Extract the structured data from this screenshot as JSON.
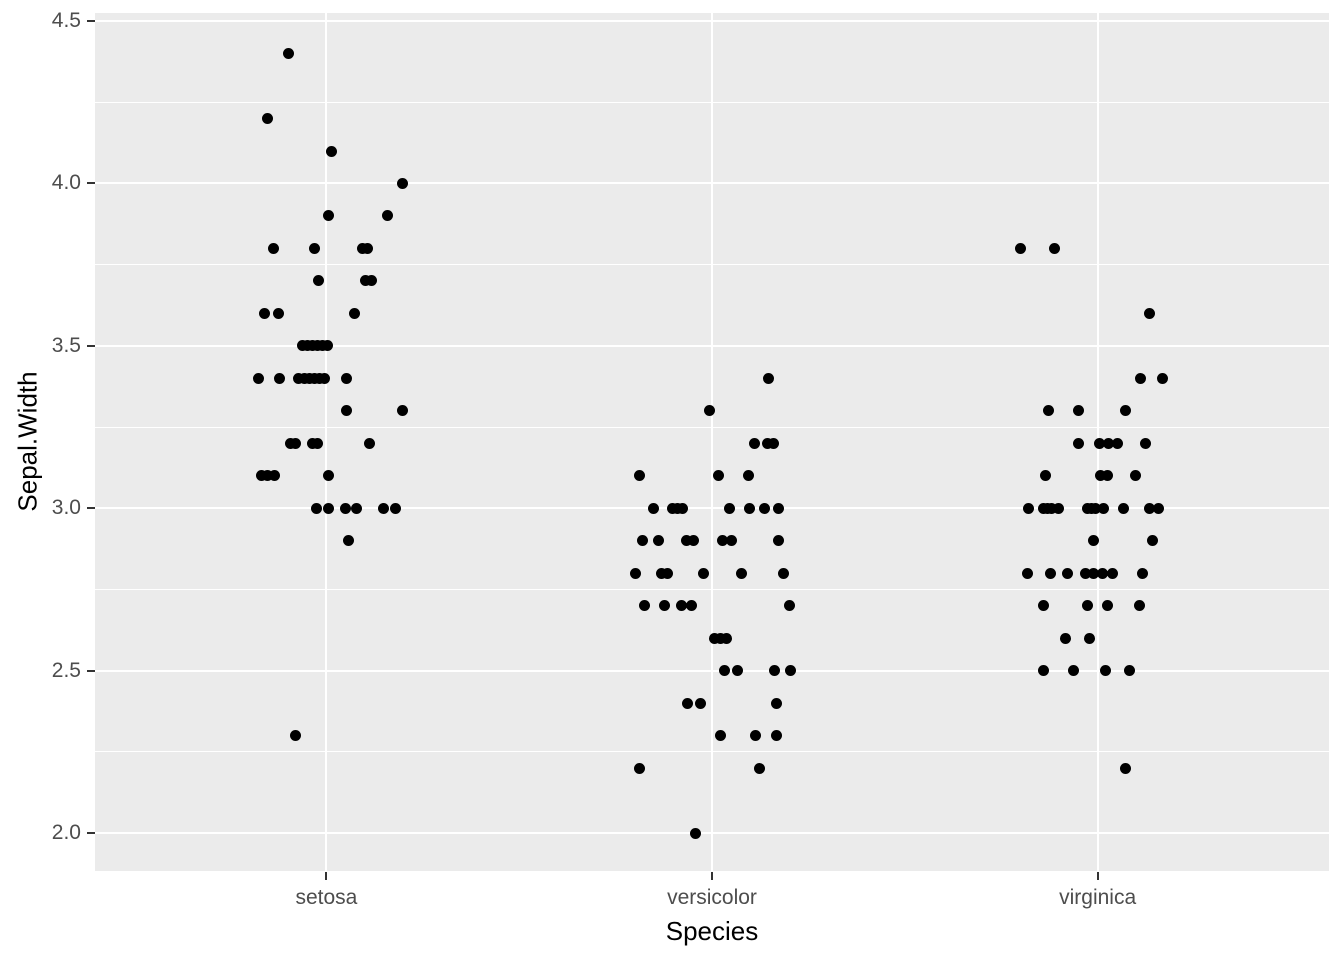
{
  "axes": {
    "x_title": "Species",
    "y_title": "Sepal.Width",
    "x_tick_labels": [
      "setosa",
      "versicolor",
      "virginica"
    ],
    "y_tick_labels": [
      "2.0",
      "2.5",
      "3.0",
      "3.5",
      "4.0",
      "4.5"
    ]
  },
  "colors": {
    "panel_background": "#EBEBEB",
    "gridline": "#FFFFFF",
    "point": "#000000",
    "tick_label": "#4D4D4D",
    "axis_title": "#000000",
    "tick_mark": "#333333"
  },
  "chart_data": {
    "type": "scatter",
    "title": "",
    "xlabel": "Species",
    "ylabel": "Sepal.Width",
    "x_categories": [
      "setosa",
      "versicolor",
      "virginica"
    ],
    "y_ticks": [
      2.0,
      2.5,
      3.0,
      3.5,
      4.0,
      4.5
    ],
    "y_minor_ticks": [
      2.25,
      2.75,
      3.25,
      3.75,
      4.25
    ],
    "ylim": [
      1.883,
      4.525
    ],
    "grid": "major-and-minor-horizontal, major-vertical",
    "legend": "none",
    "jitter": "horizontal-only, dx_px = pixel offset from category center",
    "series": [
      {
        "name": "setosa",
        "points": [
          [
            4.4,
            -38
          ],
          [
            4.2,
            -59
          ],
          [
            4.1,
            5
          ],
          [
            4.0,
            76
          ],
          [
            3.9,
            2
          ],
          [
            3.9,
            61
          ],
          [
            3.8,
            -53
          ],
          [
            3.8,
            -12
          ],
          [
            3.8,
            36
          ],
          [
            3.8,
            41
          ],
          [
            3.7,
            -8
          ],
          [
            3.7,
            39
          ],
          [
            3.7,
            45
          ],
          [
            3.6,
            -62
          ],
          [
            3.6,
            -48
          ],
          [
            3.6,
            28
          ],
          [
            3.5,
            -24
          ],
          [
            3.5,
            -19
          ],
          [
            3.5,
            -14
          ],
          [
            3.5,
            -9
          ],
          [
            3.5,
            -4
          ],
          [
            3.5,
            1
          ],
          [
            3.4,
            -68
          ],
          [
            3.4,
            -47
          ],
          [
            3.4,
            -28
          ],
          [
            3.4,
            -22
          ],
          [
            3.4,
            -17
          ],
          [
            3.4,
            -12
          ],
          [
            3.4,
            -7
          ],
          [
            3.4,
            -2
          ],
          [
            3.4,
            20
          ],
          [
            3.3,
            20
          ],
          [
            3.3,
            76
          ],
          [
            3.2,
            -36
          ],
          [
            3.2,
            -31
          ],
          [
            3.2,
            -14
          ],
          [
            3.2,
            -9
          ],
          [
            3.2,
            43
          ],
          [
            3.1,
            -65
          ],
          [
            3.1,
            -59
          ],
          [
            3.1,
            -52
          ],
          [
            3.1,
            2
          ],
          [
            3.0,
            -10
          ],
          [
            3.0,
            2
          ],
          [
            3.0,
            19
          ],
          [
            3.0,
            30
          ],
          [
            3.0,
            57
          ],
          [
            3.0,
            69
          ],
          [
            2.9,
            22
          ],
          [
            2.3,
            -31
          ]
        ]
      },
      {
        "name": "versicolor",
        "points": [
          [
            3.4,
            56
          ],
          [
            3.3,
            -3
          ],
          [
            3.2,
            42
          ],
          [
            3.2,
            55
          ],
          [
            3.2,
            61
          ],
          [
            3.1,
            -73
          ],
          [
            3.1,
            6
          ],
          [
            3.1,
            36
          ],
          [
            3.0,
            -59
          ],
          [
            3.0,
            -40
          ],
          [
            3.0,
            -35
          ],
          [
            3.0,
            -30
          ],
          [
            3.0,
            17
          ],
          [
            3.0,
            37
          ],
          [
            3.0,
            52
          ],
          [
            3.0,
            66
          ],
          [
            2.9,
            -70
          ],
          [
            2.9,
            -54
          ],
          [
            2.9,
            -26
          ],
          [
            2.9,
            -19
          ],
          [
            2.9,
            10
          ],
          [
            2.9,
            19
          ],
          [
            2.9,
            66
          ],
          [
            2.8,
            -77
          ],
          [
            2.8,
            -51
          ],
          [
            2.8,
            -45
          ],
          [
            2.8,
            -9
          ],
          [
            2.8,
            29
          ],
          [
            2.8,
            71
          ],
          [
            2.7,
            -68
          ],
          [
            2.7,
            -48
          ],
          [
            2.7,
            -31
          ],
          [
            2.7,
            -21
          ],
          [
            2.7,
            77
          ],
          [
            2.6,
            2
          ],
          [
            2.6,
            8
          ],
          [
            2.6,
            14
          ],
          [
            2.5,
            12
          ],
          [
            2.5,
            25
          ],
          [
            2.5,
            62
          ],
          [
            2.5,
            78
          ],
          [
            2.4,
            -25
          ],
          [
            2.4,
            -12
          ],
          [
            2.4,
            64
          ],
          [
            2.3,
            8
          ],
          [
            2.3,
            43
          ],
          [
            2.3,
            64
          ],
          [
            2.2,
            -73
          ],
          [
            2.2,
            47
          ],
          [
            2.0,
            -17
          ]
        ]
      },
      {
        "name": "virginica",
        "points": [
          [
            3.8,
            -77
          ],
          [
            3.8,
            -43
          ],
          [
            3.6,
            52
          ],
          [
            3.4,
            43
          ],
          [
            3.4,
            65
          ],
          [
            3.3,
            -49
          ],
          [
            3.3,
            -19
          ],
          [
            3.3,
            28
          ],
          [
            3.2,
            -19
          ],
          [
            3.2,
            2
          ],
          [
            3.2,
            11
          ],
          [
            3.2,
            20
          ],
          [
            3.2,
            48
          ],
          [
            3.1,
            -52
          ],
          [
            3.1,
            3
          ],
          [
            3.1,
            10
          ],
          [
            3.1,
            38
          ],
          [
            3.0,
            -69
          ],
          [
            3.0,
            -54
          ],
          [
            3.0,
            -50
          ],
          [
            3.0,
            -46
          ],
          [
            3.0,
            -39
          ],
          [
            3.0,
            -10
          ],
          [
            3.0,
            -6
          ],
          [
            3.0,
            -2
          ],
          [
            3.0,
            6
          ],
          [
            3.0,
            26
          ],
          [
            3.0,
            52
          ],
          [
            3.0,
            61
          ],
          [
            2.9,
            -4
          ],
          [
            2.9,
            55
          ],
          [
            2.8,
            -70
          ],
          [
            2.8,
            -47
          ],
          [
            2.8,
            -30
          ],
          [
            2.8,
            -12
          ],
          [
            2.8,
            -4
          ],
          [
            2.8,
            5
          ],
          [
            2.8,
            15
          ],
          [
            2.8,
            45
          ],
          [
            2.7,
            -54
          ],
          [
            2.7,
            -10
          ],
          [
            2.7,
            10
          ],
          [
            2.7,
            42
          ],
          [
            2.6,
            -32
          ],
          [
            2.6,
            -8
          ],
          [
            2.5,
            -54
          ],
          [
            2.5,
            -24
          ],
          [
            2.5,
            8
          ],
          [
            2.5,
            32
          ],
          [
            2.2,
            28
          ]
        ]
      }
    ]
  }
}
